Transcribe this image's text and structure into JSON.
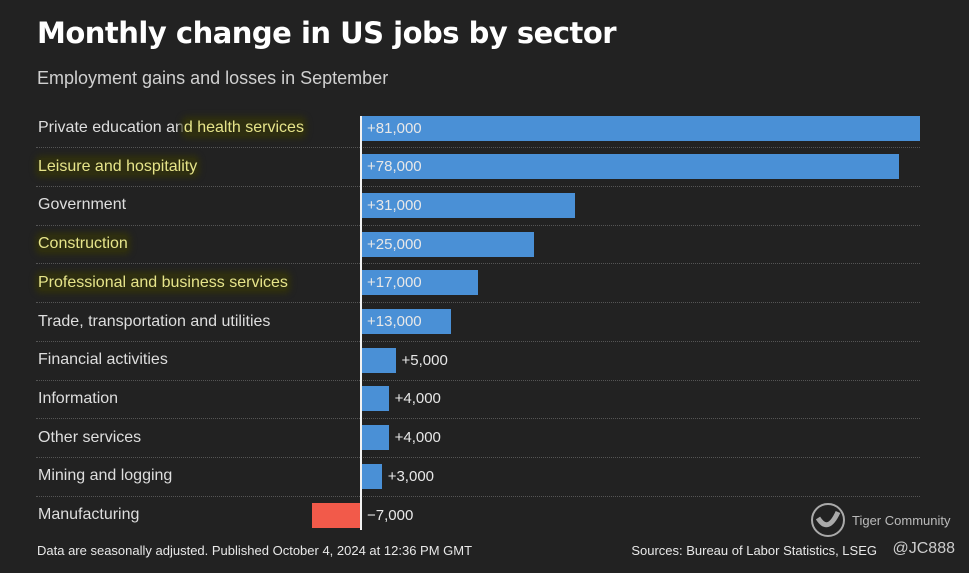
{
  "header": {
    "title": "Monthly change in US jobs by sector",
    "subtitle": "Employment gains and losses in September"
  },
  "chart_data": {
    "type": "bar",
    "orientation": "horizontal",
    "title": "Monthly change in US jobs by sector",
    "subtitle": "Employment gains and losses in September",
    "xlabel": "",
    "ylabel": "",
    "xlim": [
      -7000,
      81000
    ],
    "categories": [
      "Private education and health services",
      "Leisure and hospitality",
      "Government",
      "Construction",
      "Professional and business services",
      "Trade, transportation and utilities",
      "Financial activities",
      "Information",
      "Other services",
      "Mining and logging",
      "Manufacturing"
    ],
    "values": [
      81000,
      78000,
      31000,
      25000,
      17000,
      13000,
      5000,
      4000,
      4000,
      3000,
      -7000
    ],
    "value_labels": [
      "+81,000",
      "+78,000",
      "+31,000",
      "+25,000",
      "+17,000",
      "+13,000",
      "+5,000",
      "+4,000",
      "+4,000",
      "+3,000",
      "−7,000"
    ],
    "label_parts": [
      [
        "Private education an",
        "d health services"
      ],
      [
        "",
        "Leisure and hospitality"
      ],
      [
        "Government",
        ""
      ],
      [
        "",
        "Construction"
      ],
      [
        "",
        "Professional and business services"
      ],
      [
        "Trade, transportation and utilities",
        ""
      ],
      [
        "Financial activities",
        ""
      ],
      [
        "Information",
        ""
      ],
      [
        "Other services",
        ""
      ],
      [
        "Mining and logging",
        ""
      ],
      [
        "Manufacturing",
        ""
      ]
    ],
    "colors": {
      "positive": "#4a90d6",
      "negative": "#f25a4a"
    },
    "grid": true
  },
  "footer": {
    "note": "Data are seasonally adjusted. Published October 4, 2024 at 12:36 PM GMT",
    "source": "Sources: Bureau of Labor Statistics, LSEG"
  },
  "watermark": {
    "brand": "Tiger Community",
    "handle": "@JC888"
  }
}
